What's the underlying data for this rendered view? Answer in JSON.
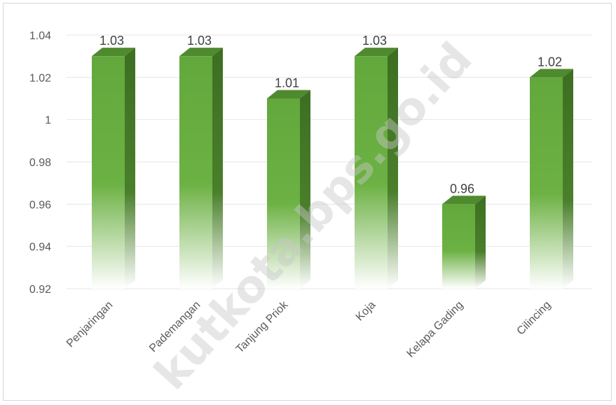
{
  "chart_data": {
    "type": "bar",
    "categories": [
      "Penjaringan",
      "Pademangan",
      "Tanjung Priok",
      "Koja",
      "Kelapa Gading",
      "Cilincing"
    ],
    "values": [
      1.03,
      1.03,
      1.01,
      1.03,
      0.96,
      1.02
    ],
    "data_labels": [
      "1.03",
      "1.03",
      "1.01",
      "1.03",
      "0.96",
      "1.02"
    ],
    "yticks": [
      "0.92",
      "0.94",
      "0.96",
      "0.98",
      "1",
      "1.02",
      "1.04"
    ],
    "ylim": [
      0.92,
      1.04
    ],
    "grid": true,
    "bar_style": "3d-gradient",
    "colors": {
      "bar_front": "#62a83c",
      "bar_side": "#3d6e22",
      "bar_top": "#4f8a2e",
      "grid": "#e6e6e6",
      "text": "#595959"
    }
  },
  "watermark": "kutkota.bps.go.id"
}
